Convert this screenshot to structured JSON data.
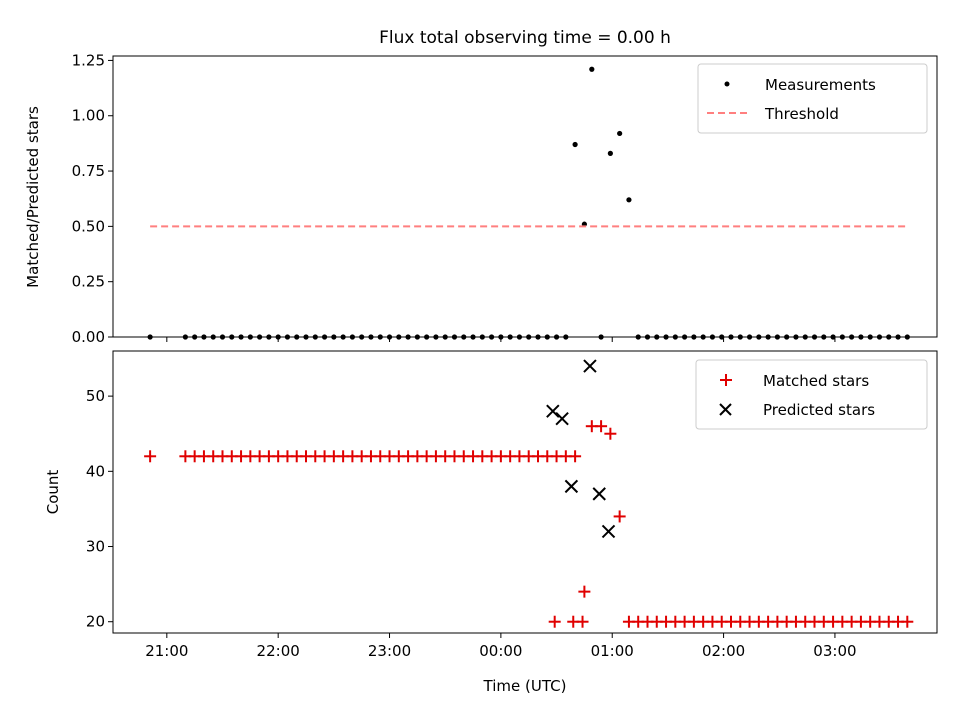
{
  "title": "Flux total observing time = 0.00 h",
  "colors": {
    "measurement": "#000000",
    "threshold": "#ff7f7f",
    "matched": "#e00000",
    "predicted": "#000000"
  },
  "chart_data": [
    {
      "type": "scatter",
      "ylabel": "Matched/Predicted stars",
      "ylim": [
        0,
        1.27
      ],
      "xlim": [
        "20:31",
        "03:55"
      ],
      "y_ticks": [
        "0.00",
        "0.25",
        "0.50",
        "0.75",
        "1.00",
        "1.25"
      ],
      "y_tick_values": [
        0,
        0.25,
        0.5,
        0.75,
        1.0,
        1.25
      ],
      "legend_position": "top-right",
      "grid": false,
      "series": [
        {
          "name": "Measurements",
          "marker": "dot",
          "x": [
            "20:51",
            "21:10",
            "21:15",
            "21:20",
            "21:25",
            "21:30",
            "21:35",
            "21:40",
            "21:45",
            "21:50",
            "21:55",
            "22:00",
            "22:05",
            "22:10",
            "22:15",
            "22:20",
            "22:25",
            "22:30",
            "22:35",
            "22:40",
            "22:45",
            "22:50",
            "22:55",
            "23:00",
            "23:05",
            "23:10",
            "23:15",
            "23:20",
            "23:25",
            "23:30",
            "23:35",
            "23:40",
            "23:45",
            "23:50",
            "23:55",
            "00:00",
            "00:05",
            "00:10",
            "00:15",
            "00:20",
            "00:25",
            "00:30",
            "00:35",
            "00:40",
            "00:45",
            "00:49",
            "00:54",
            "00:59",
            "01:04",
            "01:09",
            "01:14",
            "01:19",
            "01:24",
            "01:29",
            "01:34",
            "01:39",
            "01:44",
            "01:49",
            "01:54",
            "01:59",
            "02:04",
            "02:09",
            "02:14",
            "02:19",
            "02:24",
            "02:29",
            "02:34",
            "02:39",
            "02:44",
            "02:49",
            "02:54",
            "02:59",
            "03:04",
            "03:09",
            "03:14",
            "03:19",
            "03:24",
            "03:29",
            "03:34",
            "03:39"
          ],
          "y": [
            0,
            0,
            0,
            0,
            0,
            0,
            0,
            0,
            0,
            0,
            0,
            0,
            0,
            0,
            0,
            0,
            0,
            0,
            0,
            0,
            0,
            0,
            0,
            0,
            0,
            0,
            0,
            0,
            0,
            0,
            0,
            0,
            0,
            0,
            0,
            0,
            0,
            0,
            0,
            0,
            0,
            0,
            0,
            0.87,
            0.51,
            1.21,
            0,
            0.83,
            0.92,
            0.62,
            0,
            0,
            0,
            0,
            0,
            0,
            0,
            0,
            0,
            0,
            0,
            0,
            0,
            0,
            0,
            0,
            0,
            0,
            0,
            0,
            0,
            0,
            0,
            0,
            0,
            0,
            0,
            0,
            0,
            0
          ]
        },
        {
          "name": "Threshold",
          "marker": "dashed-line",
          "x": [
            "20:51",
            "03:39"
          ],
          "y": [
            0.5,
            0.5
          ]
        }
      ]
    },
    {
      "type": "scatter",
      "xlabel": "Time (UTC)",
      "ylabel": "Count",
      "ylim": [
        18.5,
        56
      ],
      "xlim": [
        "20:31",
        "03:55"
      ],
      "x_ticks": [
        "21:00",
        "22:00",
        "23:00",
        "00:00",
        "01:00",
        "02:00",
        "03:00"
      ],
      "y_ticks": [
        "20",
        "30",
        "40",
        "50"
      ],
      "y_tick_values": [
        20,
        30,
        40,
        50
      ],
      "legend_position": "top-right",
      "grid": false,
      "series": [
        {
          "name": "Matched stars",
          "marker": "plus",
          "x": [
            "20:51",
            "21:10",
            "21:15",
            "21:20",
            "21:25",
            "21:30",
            "21:35",
            "21:40",
            "21:45",
            "21:50",
            "21:55",
            "22:00",
            "22:05",
            "22:10",
            "22:15",
            "22:20",
            "22:25",
            "22:30",
            "22:35",
            "22:40",
            "22:45",
            "22:50",
            "22:55",
            "23:00",
            "23:05",
            "23:10",
            "23:15",
            "23:20",
            "23:25",
            "23:30",
            "23:35",
            "23:40",
            "23:45",
            "23:50",
            "23:55",
            "00:00",
            "00:05",
            "00:10",
            "00:15",
            "00:20",
            "00:25",
            "00:30",
            "00:35",
            "00:40",
            "00:45",
            "00:49",
            "00:54",
            "00:59",
            "01:04",
            "01:09",
            "01:14",
            "01:19",
            "01:24",
            "01:29",
            "01:34",
            "01:39",
            "01:44",
            "01:49",
            "01:54",
            "01:59",
            "02:04",
            "02:09",
            "02:14",
            "02:19",
            "02:24",
            "02:29",
            "02:34",
            "02:39",
            "02:44",
            "02:49",
            "02:54",
            "02:59",
            "03:04",
            "03:09",
            "03:14",
            "03:19",
            "03:24",
            "03:29",
            "03:34",
            "03:39",
            "00:29",
            "00:39",
            "00:44"
          ],
          "y": [
            42,
            42,
            42,
            42,
            42,
            42,
            42,
            42,
            42,
            42,
            42,
            42,
            42,
            42,
            42,
            42,
            42,
            42,
            42,
            42,
            42,
            42,
            42,
            42,
            42,
            42,
            42,
            42,
            42,
            42,
            42,
            42,
            42,
            42,
            42,
            42,
            42,
            42,
            42,
            42,
            42,
            42,
            42,
            42,
            24,
            46,
            46,
            45,
            34,
            20,
            20,
            20,
            20,
            20,
            20,
            20,
            20,
            20,
            20,
            20,
            20,
            20,
            20,
            20,
            20,
            20,
            20,
            20,
            20,
            20,
            20,
            20,
            20,
            20,
            20,
            20,
            20,
            20,
            20,
            20,
            20,
            20,
            20
          ]
        },
        {
          "name": "Predicted stars",
          "marker": "x",
          "x": [
            "00:28",
            "00:33",
            "00:38",
            "00:48",
            "00:53",
            "00:58"
          ],
          "y": [
            48,
            47,
            38,
            54,
            37,
            32
          ]
        }
      ]
    }
  ]
}
